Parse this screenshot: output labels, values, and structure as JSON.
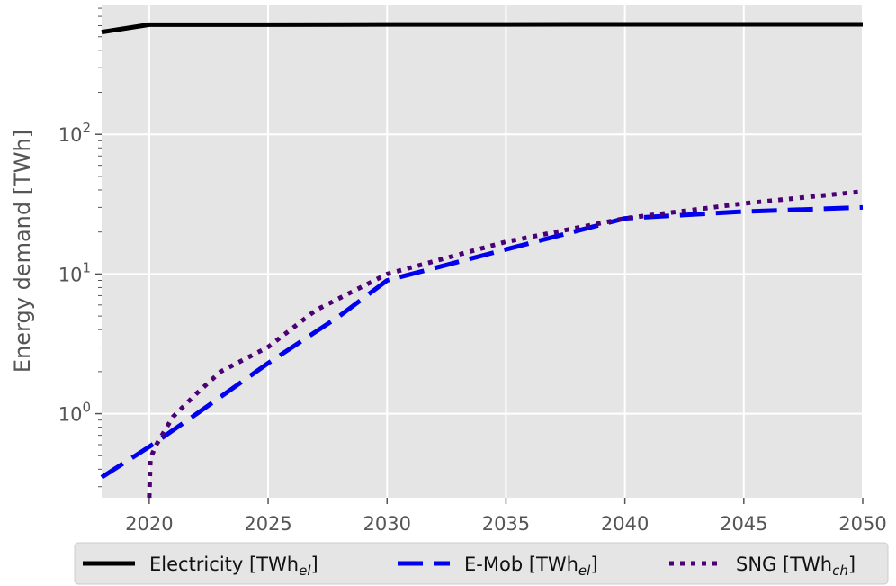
{
  "chart_data": {
    "type": "line",
    "title": "",
    "xlabel": "",
    "ylabel": "Energy demand [TWh]",
    "xlim": [
      2018,
      2050
    ],
    "ylim": [
      0.25,
      850
    ],
    "yscale": "log",
    "grid": true,
    "x_ticks": [
      2020,
      2025,
      2030,
      2035,
      2040,
      2045,
      2050
    ],
    "y_ticks": [
      {
        "value": 1,
        "base": "10",
        "exp": "0"
      },
      {
        "value": 10,
        "base": "10",
        "exp": "1"
      },
      {
        "value": 100,
        "base": "10",
        "exp": "2"
      }
    ],
    "legend_position": "bottom-center",
    "series": [
      {
        "name_base": "Electricity [TWh",
        "name_sub": "el",
        "name_end": "]",
        "color": "#000000",
        "style": "solid",
        "x": [
          2018,
          2020,
          2025,
          2030,
          2035,
          2040,
          2045,
          2050
        ],
        "y": [
          540,
          610,
          610,
          612,
          612,
          613,
          613,
          613
        ]
      },
      {
        "name_base": "E-Mob [TWh",
        "name_sub": "el",
        "name_end": "]",
        "color": "#0000ee",
        "style": "dashed",
        "x": [
          2018,
          2020,
          2022,
          2025,
          2028,
          2030,
          2035,
          2040,
          2045,
          2050
        ],
        "y": [
          0.35,
          0.58,
          1.0,
          2.3,
          5.0,
          9.0,
          15.0,
          25.0,
          28.0,
          30.0
        ]
      },
      {
        "name_base": "SNG [TWh",
        "name_sub": "ch",
        "name_end": "]",
        "color": "#4b0075",
        "style": "dotted",
        "x": [
          2020,
          2020.05,
          2020.3,
          2021,
          2022,
          2023,
          2025,
          2027,
          2030,
          2035,
          2040,
          2045,
          2050
        ],
        "y": [
          0.25,
          0.48,
          0.6,
          0.95,
          1.4,
          2.0,
          3.0,
          5.5,
          10.0,
          17.0,
          25.0,
          32.0,
          39.0
        ]
      }
    ]
  }
}
